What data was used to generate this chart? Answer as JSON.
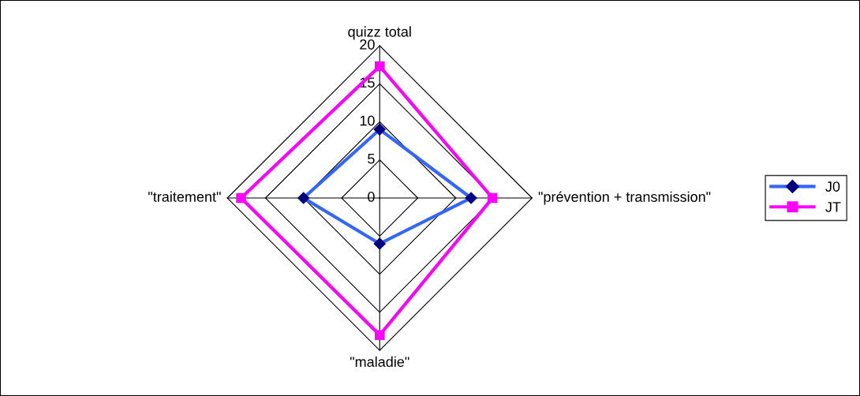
{
  "chart_data": {
    "type": "radar",
    "categories": [
      "quizz total",
      "\"prévention + transmission\"",
      "\"maladie\"",
      "\"traitement\""
    ],
    "series": [
      {
        "name": "J0",
        "color": "#3366ff",
        "colors": [
          "#000080",
          "#000080",
          "#000080",
          "#000080"
        ],
        "marker": "diamond",
        "values": [
          9,
          12,
          6,
          10
        ]
      },
      {
        "name": "JT",
        "color": "#ff00ff",
        "colors": [
          "#ff00ff",
          "#ff00ff",
          "#ff00ff",
          "#ff00ff"
        ],
        "marker": "square",
        "values": [
          17.3,
          14.8,
          18,
          18.2
        ]
      }
    ],
    "ylim": [
      0,
      20
    ],
    "yticks": [
      0,
      5,
      10,
      15,
      20
    ],
    "grid": true,
    "legend": "right"
  }
}
